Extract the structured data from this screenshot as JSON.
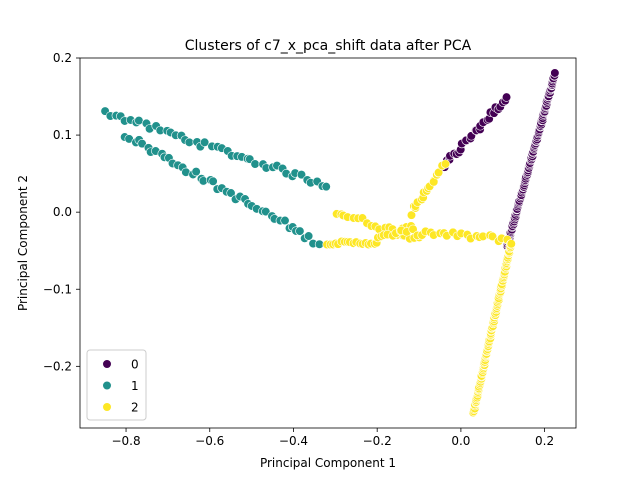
{
  "chart_data": {
    "type": "scatter",
    "title": "Clusters of c7_x_pca_shift data after PCA",
    "xlabel": "Principal Component 1",
    "ylabel": "Principal Component 2",
    "xlim": [
      -0.91,
      0.275
    ],
    "ylim": [
      -0.28,
      0.2
    ],
    "xticks": [
      -0.8,
      -0.6,
      -0.4,
      -0.2,
      0.0,
      0.2
    ],
    "xtick_labels": [
      "−0.8",
      "−0.6",
      "−0.4",
      "−0.2",
      "0.0",
      "0.2"
    ],
    "yticks": [
      -0.2,
      -0.1,
      0.0,
      0.1,
      0.2
    ],
    "ytick_labels": [
      "−0.2",
      "−0.1",
      "0.0",
      "0.1",
      "0.2"
    ],
    "grid": false,
    "legend": {
      "position": "lower-left",
      "entries": [
        "0",
        "1",
        "2"
      ]
    },
    "colors": {
      "0": "#440154",
      "1": "#21918c",
      "2": "#fde725"
    },
    "series": [
      {
        "name": "0",
        "segments": [
          {
            "from": [
              -0.04,
              0.06
            ],
            "to": [
              0.11,
              0.15
            ],
            "n": 28,
            "jitter": 0.004
          },
          {
            "from": [
              0.11,
              -0.045
            ],
            "to": [
              0.225,
              0.18
            ],
            "n": 110,
            "jitter": 0.001
          }
        ]
      },
      {
        "name": "1",
        "segments": [
          {
            "from": [
              -0.85,
              0.13
            ],
            "to": [
              -0.32,
              0.035
            ],
            "n": 45,
            "jitter": 0.004
          },
          {
            "from": [
              -0.8,
              0.1
            ],
            "to": [
              -0.34,
              -0.04
            ],
            "n": 45,
            "jitter": 0.004
          }
        ]
      },
      {
        "name": "2",
        "segments": [
          {
            "from": [
              -0.3,
              0.0
            ],
            "to": [
              -0.1,
              -0.035
            ],
            "n": 20,
            "jitter": 0.004
          },
          {
            "from": [
              -0.32,
              -0.04
            ],
            "to": [
              -0.2,
              -0.04
            ],
            "n": 18,
            "jitter": 0.002
          },
          {
            "from": [
              -0.2,
              -0.035
            ],
            "to": [
              -0.12,
              -0.02
            ],
            "n": 10,
            "jitter": 0.003
          },
          {
            "from": [
              -0.12,
              0.0
            ],
            "to": [
              -0.04,
              0.06
            ],
            "n": 18,
            "jitter": 0.004
          },
          {
            "from": [
              -0.14,
              -0.025
            ],
            "to": [
              0.11,
              -0.035
            ],
            "n": 24,
            "jitter": 0.004
          },
          {
            "from": [
              0.03,
              -0.26
            ],
            "to": [
              0.12,
              -0.04
            ],
            "n": 110,
            "jitter": 0.001
          }
        ]
      }
    ]
  }
}
